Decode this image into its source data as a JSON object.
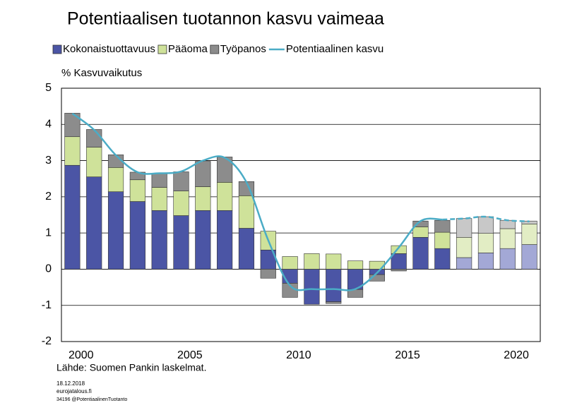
{
  "chart_data": {
    "type": "bar",
    "title": "Potentiaalisen tuotannon kasvu vaimeaa",
    "y_label": "% Kasvuvaikutus",
    "source": "Lähde: Suomen Pankin laskelmat.",
    "footer": [
      "18.12.2018",
      "eurojatalous.fi",
      "34196 @PotentiaalinenTuotanto"
    ],
    "categories": [
      "2000",
      null,
      null,
      null,
      null,
      "2005",
      null,
      null,
      null,
      null,
      "2010",
      null,
      null,
      null,
      null,
      "2015",
      null,
      null,
      null,
      null,
      "2020",
      null
    ],
    "forecast_start": 18,
    "ylim": [
      -2,
      5
    ],
    "yticks": [
      -2,
      -1,
      0,
      1,
      2,
      3,
      4,
      5
    ],
    "series": [
      {
        "name": "Kokonaistuottavuus",
        "color": "#4b55a5",
        "forecast_color": "#a3a8d6",
        "values": [
          2.87,
          2.55,
          2.14,
          1.87,
          1.62,
          1.48,
          1.62,
          1.62,
          1.13,
          0.53,
          -0.39,
          -0.97,
          -0.9,
          -0.56,
          -0.15,
          0.43,
          0.88,
          0.57,
          0.32,
          0.45,
          0.57,
          0.68
        ]
      },
      {
        "name": "Pääoma",
        "color": "#cfe29a",
        "forecast_color": "#e2edc4",
        "values": [
          0.79,
          0.82,
          0.67,
          0.6,
          0.64,
          0.68,
          0.66,
          0.78,
          0.9,
          0.52,
          0.35,
          0.43,
          0.42,
          0.23,
          0.22,
          0.22,
          0.29,
          0.45,
          0.56,
          0.54,
          0.55,
          0.57
        ]
      },
      {
        "name": "Työpanos",
        "color": "#8c8c8c",
        "forecast_color": "#c8c8c8",
        "values": [
          0.65,
          0.49,
          0.35,
          0.21,
          0.39,
          0.53,
          0.7,
          0.7,
          0.39,
          -0.25,
          -0.39,
          0,
          -0.05,
          -0.22,
          -0.18,
          -0.05,
          0.16,
          0.33,
          0.52,
          0.46,
          0.23,
          0.08
        ]
      },
      {
        "name": "Potentiaalinen kasvu",
        "type": "line",
        "color": "#4bacc6",
        "values": [
          4.3,
          3.85,
          3.15,
          2.68,
          2.65,
          2.7,
          3.0,
          3.08,
          2.4,
          0.8,
          -0.45,
          -0.55,
          -0.55,
          -0.55,
          -0.1,
          0.6,
          1.33,
          1.37,
          1.4,
          1.45,
          1.35,
          1.32
        ]
      }
    ]
  }
}
